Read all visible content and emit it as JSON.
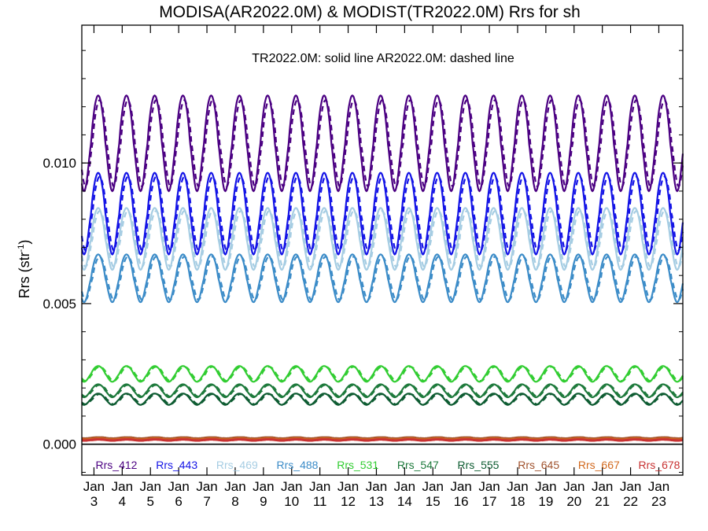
{
  "chart_data": {
    "type": "line",
    "title": "MODISA(AR2022.0M) & MODIST(TR2022.0M)  Rrs for sh",
    "annotation": "TR2022.0M: solid line   AR2022.0M: dashed line",
    "ylabel_main": "Rrs (str",
    "ylabel_sup": "-1",
    "ylabel_end": ")",
    "ylim": [
      -0.0011,
      0.0149
    ],
    "yticks": [
      {
        "value": 0.01,
        "label": "0.010"
      },
      {
        "value": 0.005,
        "label": "0.005"
      },
      {
        "value": 0.0,
        "label": "0.000"
      }
    ],
    "xlim": [
      2.57,
      23.85
    ],
    "xticks": [
      {
        "value": 3,
        "month": "Jan",
        "day": "3"
      },
      {
        "value": 4,
        "month": "Jan",
        "day": "4"
      },
      {
        "value": 5,
        "month": "Jan",
        "day": "5"
      },
      {
        "value": 6,
        "month": "Jan",
        "day": "6"
      },
      {
        "value": 7,
        "month": "Jan",
        "day": "7"
      },
      {
        "value": 8,
        "month": "Jan",
        "day": "8"
      },
      {
        "value": 9,
        "month": "Jan",
        "day": "9"
      },
      {
        "value": 10,
        "month": "Jan",
        "day": "10"
      },
      {
        "value": 11,
        "month": "Jan",
        "day": "11"
      },
      {
        "value": 12,
        "month": "Jan",
        "day": "12"
      },
      {
        "value": 13,
        "month": "Jan",
        "day": "13"
      },
      {
        "value": 14,
        "month": "Jan",
        "day": "14"
      },
      {
        "value": 15,
        "month": "Jan",
        "day": "15"
      },
      {
        "value": 16,
        "month": "Jan",
        "day": "16"
      },
      {
        "value": 17,
        "month": "Jan",
        "day": "17"
      },
      {
        "value": 18,
        "month": "Jan",
        "day": "18"
      },
      {
        "value": 19,
        "month": "Jan",
        "day": "19"
      },
      {
        "value": 20,
        "month": "Jan",
        "day": "20"
      },
      {
        "value": 21,
        "month": "Jan",
        "day": "21"
      },
      {
        "value": 22,
        "month": "Jan",
        "day": "22"
      },
      {
        "value": 23,
        "month": "Jan",
        "day": "23"
      }
    ],
    "zero_line": 0.0,
    "legend_placement": "bottom inside plot",
    "series": [
      {
        "name": "Rrs_412",
        "color": "#4B0082",
        "mean": 0.0107,
        "amp": 0.0017,
        "phase": 0.0
      },
      {
        "name": "Rrs_443",
        "color": "#1414E6",
        "mean": 0.0082,
        "amp": 0.00145,
        "phase": 0.0
      },
      {
        "name": "Rrs_469",
        "color": "#A6CDE3",
        "mean": 0.0073,
        "amp": 0.0011,
        "phase": 0.0
      },
      {
        "name": "Rrs_488",
        "color": "#3C8CC8",
        "mean": 0.0059,
        "amp": 0.00085,
        "phase": 0.0
      },
      {
        "name": "Rrs_531",
        "color": "#32CD32",
        "mean": 0.0025,
        "amp": 0.00028,
        "phase": 0.0
      },
      {
        "name": "Rrs_547",
        "color": "#1E7A3C",
        "mean": 0.0019,
        "amp": 0.00023,
        "phase": 0.0
      },
      {
        "name": "Rrs_555",
        "color": "#0E5C32",
        "mean": 0.0016,
        "amp": 0.0002,
        "phase": 0.0
      },
      {
        "name": "Rrs_645",
        "color": "#A0522D",
        "mean": 0.00022,
        "amp": 2e-05,
        "phase": 0.0
      },
      {
        "name": "Rrs_667",
        "color": "#D2691E",
        "mean": 0.00018,
        "amp": 2e-05,
        "phase": 0.0
      },
      {
        "name": "Rrs_678",
        "color": "#C83232",
        "mean": 0.00015,
        "amp": 2e-05,
        "phase": 0.0
      }
    ]
  }
}
